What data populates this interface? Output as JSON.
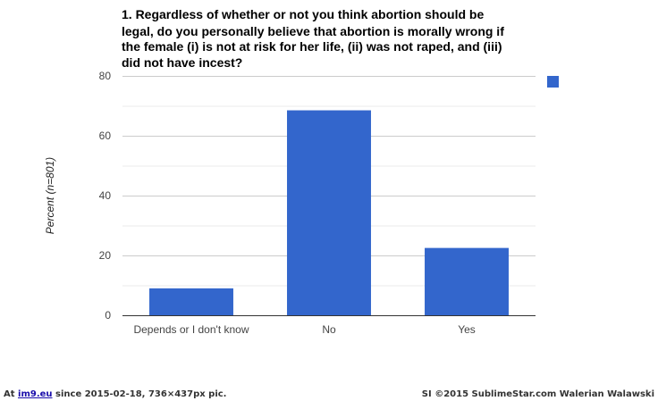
{
  "chart_data": {
    "type": "bar",
    "title_lines": [
      "1. Regardless of whether or not you think abortion should be",
      "legal, do you personally believe that abortion is morally wrong if",
      "the female (i) is not at risk for her life, (ii) was not raped, and (iii)",
      "did not have incest?"
    ],
    "categories": [
      "Depends or I don't know",
      "No",
      "Yes"
    ],
    "values": [
      9,
      68.5,
      22.5
    ],
    "ylabel": "Percent (n=801)",
    "xlabel": "",
    "ylim": [
      0,
      80
    ],
    "yticks": [
      "0",
      "20",
      "40",
      "60",
      "80"
    ],
    "grid": true,
    "legend": "top-right, single blue swatch without label",
    "bar_color": "#3366cc"
  },
  "footer": {
    "prefix": "At ",
    "site": "im9.eu",
    "since": " since 2015-02-18, 736×437px pic.",
    "credit": "SI ©2015 SublimeStar.com Walerian Walawski"
  }
}
